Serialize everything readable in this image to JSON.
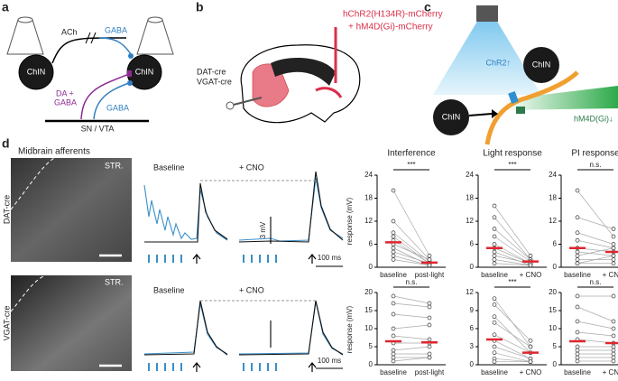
{
  "panels": {
    "a": {
      "label": "a",
      "ach": "ACh",
      "gaba_top": "GABA",
      "chin_left": "ChIN",
      "chin_right": "ChIN",
      "da_gaba": [
        "DA +",
        "GABA"
      ],
      "gaba_bottom": "GABA",
      "region": "SN / VTA"
    },
    "b": {
      "label": "b",
      "virus": [
        "hChR2(H134R)-mCherry",
        "+ hM4D(Gi)-mCherry"
      ],
      "mice": [
        "DAT-cre",
        "VGAT-cre"
      ]
    },
    "c": {
      "label": "c",
      "chr2": "ChR2↑",
      "hm4d": "hM4D(Gi)↓",
      "chin_left": "ChIN",
      "chin_right": "ChIN"
    },
    "d": {
      "label": "d",
      "title": "Midbrain afferents",
      "rows": [
        {
          "genotype": "DAT-cre",
          "region": "STR.",
          "baseline": "Baseline",
          "cno": "+ CNO",
          "scale_v": "3 mV",
          "scale_t": "100 ms",
          "y_label": "response (mV)"
        },
        {
          "genotype": "VGAT-cre",
          "region": "STR.",
          "baseline": "Baseline",
          "cno": "+ CNO",
          "scale_t": "100 ms",
          "y_label": "response (mV)"
        }
      ],
      "plots": [
        {
          "title": "Interference",
          "significance": "***",
          "categories": [
            "baseline",
            "post-light"
          ],
          "ylim": [
            0,
            24
          ],
          "yticks": [
            0,
            6,
            12,
            18,
            24
          ],
          "means": [
            6.5,
            1.2
          ],
          "pairs": [
            [
              20,
              3
            ],
            [
              12,
              2
            ],
            [
              9,
              1.5
            ],
            [
              8,
              1
            ],
            [
              7,
              1
            ],
            [
              6,
              2
            ],
            [
              5,
              0.5
            ],
            [
              4,
              1
            ],
            [
              3,
              0.5
            ],
            [
              2,
              0.5
            ]
          ]
        },
        {
          "title": "Light response",
          "significance": "***",
          "categories": [
            "baseline",
            "+ CNO"
          ],
          "ylim": [
            0,
            24
          ],
          "yticks": [
            0,
            6,
            12,
            18,
            24
          ],
          "means": [
            5,
            1.5
          ],
          "pairs": [
            [
              16,
              3
            ],
            [
              13,
              2
            ],
            [
              10,
              2
            ],
            [
              8,
              1.5
            ],
            [
              6,
              1
            ],
            [
              5,
              1
            ],
            [
              4,
              0.5
            ],
            [
              3,
              1
            ],
            [
              2,
              0.5
            ],
            [
              1,
              0.5
            ]
          ]
        },
        {
          "title": "PI response",
          "significance": "n.s.",
          "categories": [
            "baseline",
            "+ CNO"
          ],
          "ylim": [
            0,
            24
          ],
          "yticks": [
            0,
            6,
            12,
            18,
            24
          ],
          "means": [
            5,
            4
          ],
          "pairs": [
            [
              20,
              8
            ],
            [
              13,
              10
            ],
            [
              9,
              6
            ],
            [
              7,
              5
            ],
            [
              5,
              4
            ],
            [
              4,
              3
            ],
            [
              3,
              5
            ],
            [
              2,
              2
            ],
            [
              1,
              3
            ],
            [
              1,
              1
            ]
          ]
        },
        {
          "significance": "n.s.",
          "categories": [
            "baseline",
            "post-light"
          ],
          "ylim": [
            0,
            20
          ],
          "yticks": [
            0,
            5,
            10,
            15,
            20
          ],
          "means": [
            6.5,
            6.2
          ],
          "pairs": [
            [
              19,
              17
            ],
            [
              17,
              16
            ],
            [
              14,
              13
            ],
            [
              10,
              11
            ],
            [
              8,
              7
            ],
            [
              6,
              6
            ],
            [
              4,
              5
            ],
            [
              3,
              3
            ],
            [
              2,
              2
            ],
            [
              1,
              2
            ]
          ]
        },
        {
          "significance": "***",
          "categories": [
            "baseline",
            "+ CNO"
          ],
          "ylim": [
            0,
            12
          ],
          "yticks": [
            0,
            3,
            6,
            9,
            12
          ],
          "means": [
            4.2,
            2
          ],
          "pairs": [
            [
              11,
              3
            ],
            [
              10,
              4
            ],
            [
              8,
              2
            ],
            [
              7,
              3
            ],
            [
              5,
              2
            ],
            [
              4,
              1
            ],
            [
              3,
              1
            ],
            [
              2,
              0.5
            ],
            [
              1,
              0.5
            ],
            [
              0.5,
              0.5
            ]
          ]
        },
        {
          "significance": "n.s.",
          "categories": [
            "baseline",
            "+ CNO"
          ],
          "ylim": [
            0,
            20
          ],
          "yticks": [
            0,
            5,
            10,
            15,
            20
          ],
          "means": [
            6.5,
            6
          ],
          "pairs": [
            [
              19,
              19
            ],
            [
              16,
              12
            ],
            [
              12,
              10
            ],
            [
              9,
              8
            ],
            [
              7,
              6
            ],
            [
              5,
              5
            ],
            [
              4,
              4
            ],
            [
              3,
              3
            ],
            [
              2,
              2
            ],
            [
              1,
              1
            ]
          ]
        }
      ]
    }
  }
}
